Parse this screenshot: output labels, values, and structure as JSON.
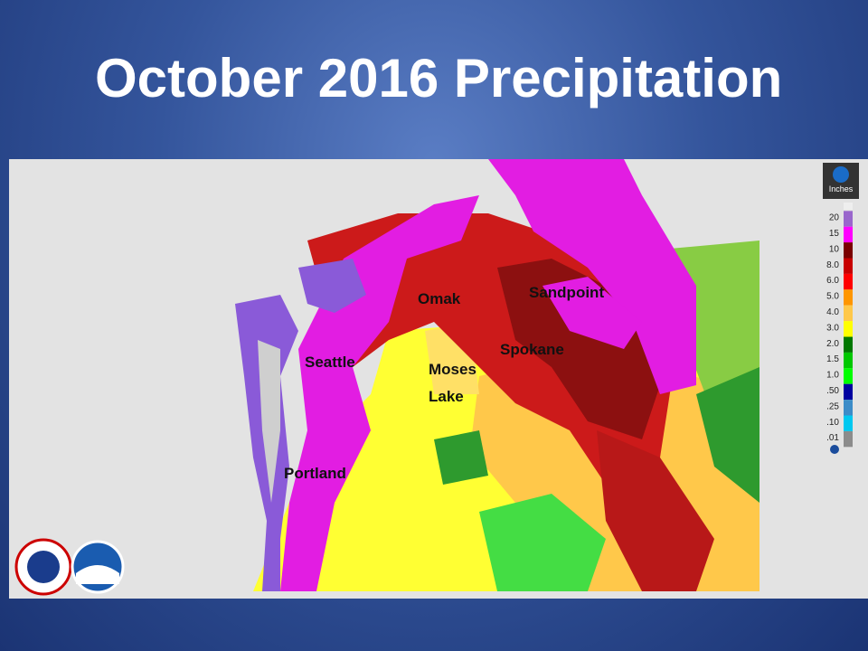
{
  "title": "October 2016 Precipitation",
  "map": {
    "cities": [
      "Omak",
      "Sandpoint",
      "Spokane",
      "Seattle",
      "Moses",
      "Lake",
      "Portland"
    ]
  },
  "legend": {
    "unit": "Inches",
    "entries": [
      {
        "label": "20",
        "color": "#9966cc"
      },
      {
        "label": "15",
        "color": "#ff00ff"
      },
      {
        "label": "10",
        "color": "#7a0000"
      },
      {
        "label": "8.0",
        "color": "#c80000"
      },
      {
        "label": "6.0",
        "color": "#ff0000"
      },
      {
        "label": "5.0",
        "color": "#ff9600"
      },
      {
        "label": "4.0",
        "color": "#ffc84a"
      },
      {
        "label": "3.0",
        "color": "#ffff00"
      },
      {
        "label": "2.0",
        "color": "#007800"
      },
      {
        "label": "1.5",
        "color": "#00c800"
      },
      {
        "label": "1.0",
        "color": "#00ff00"
      },
      {
        "label": ".50",
        "color": "#0000a0"
      },
      {
        "label": ".25",
        "color": "#3c8cc8"
      },
      {
        "label": ".10",
        "color": "#00c8f0"
      },
      {
        "label": ".01",
        "color": "#8c8c8c"
      }
    ]
  }
}
